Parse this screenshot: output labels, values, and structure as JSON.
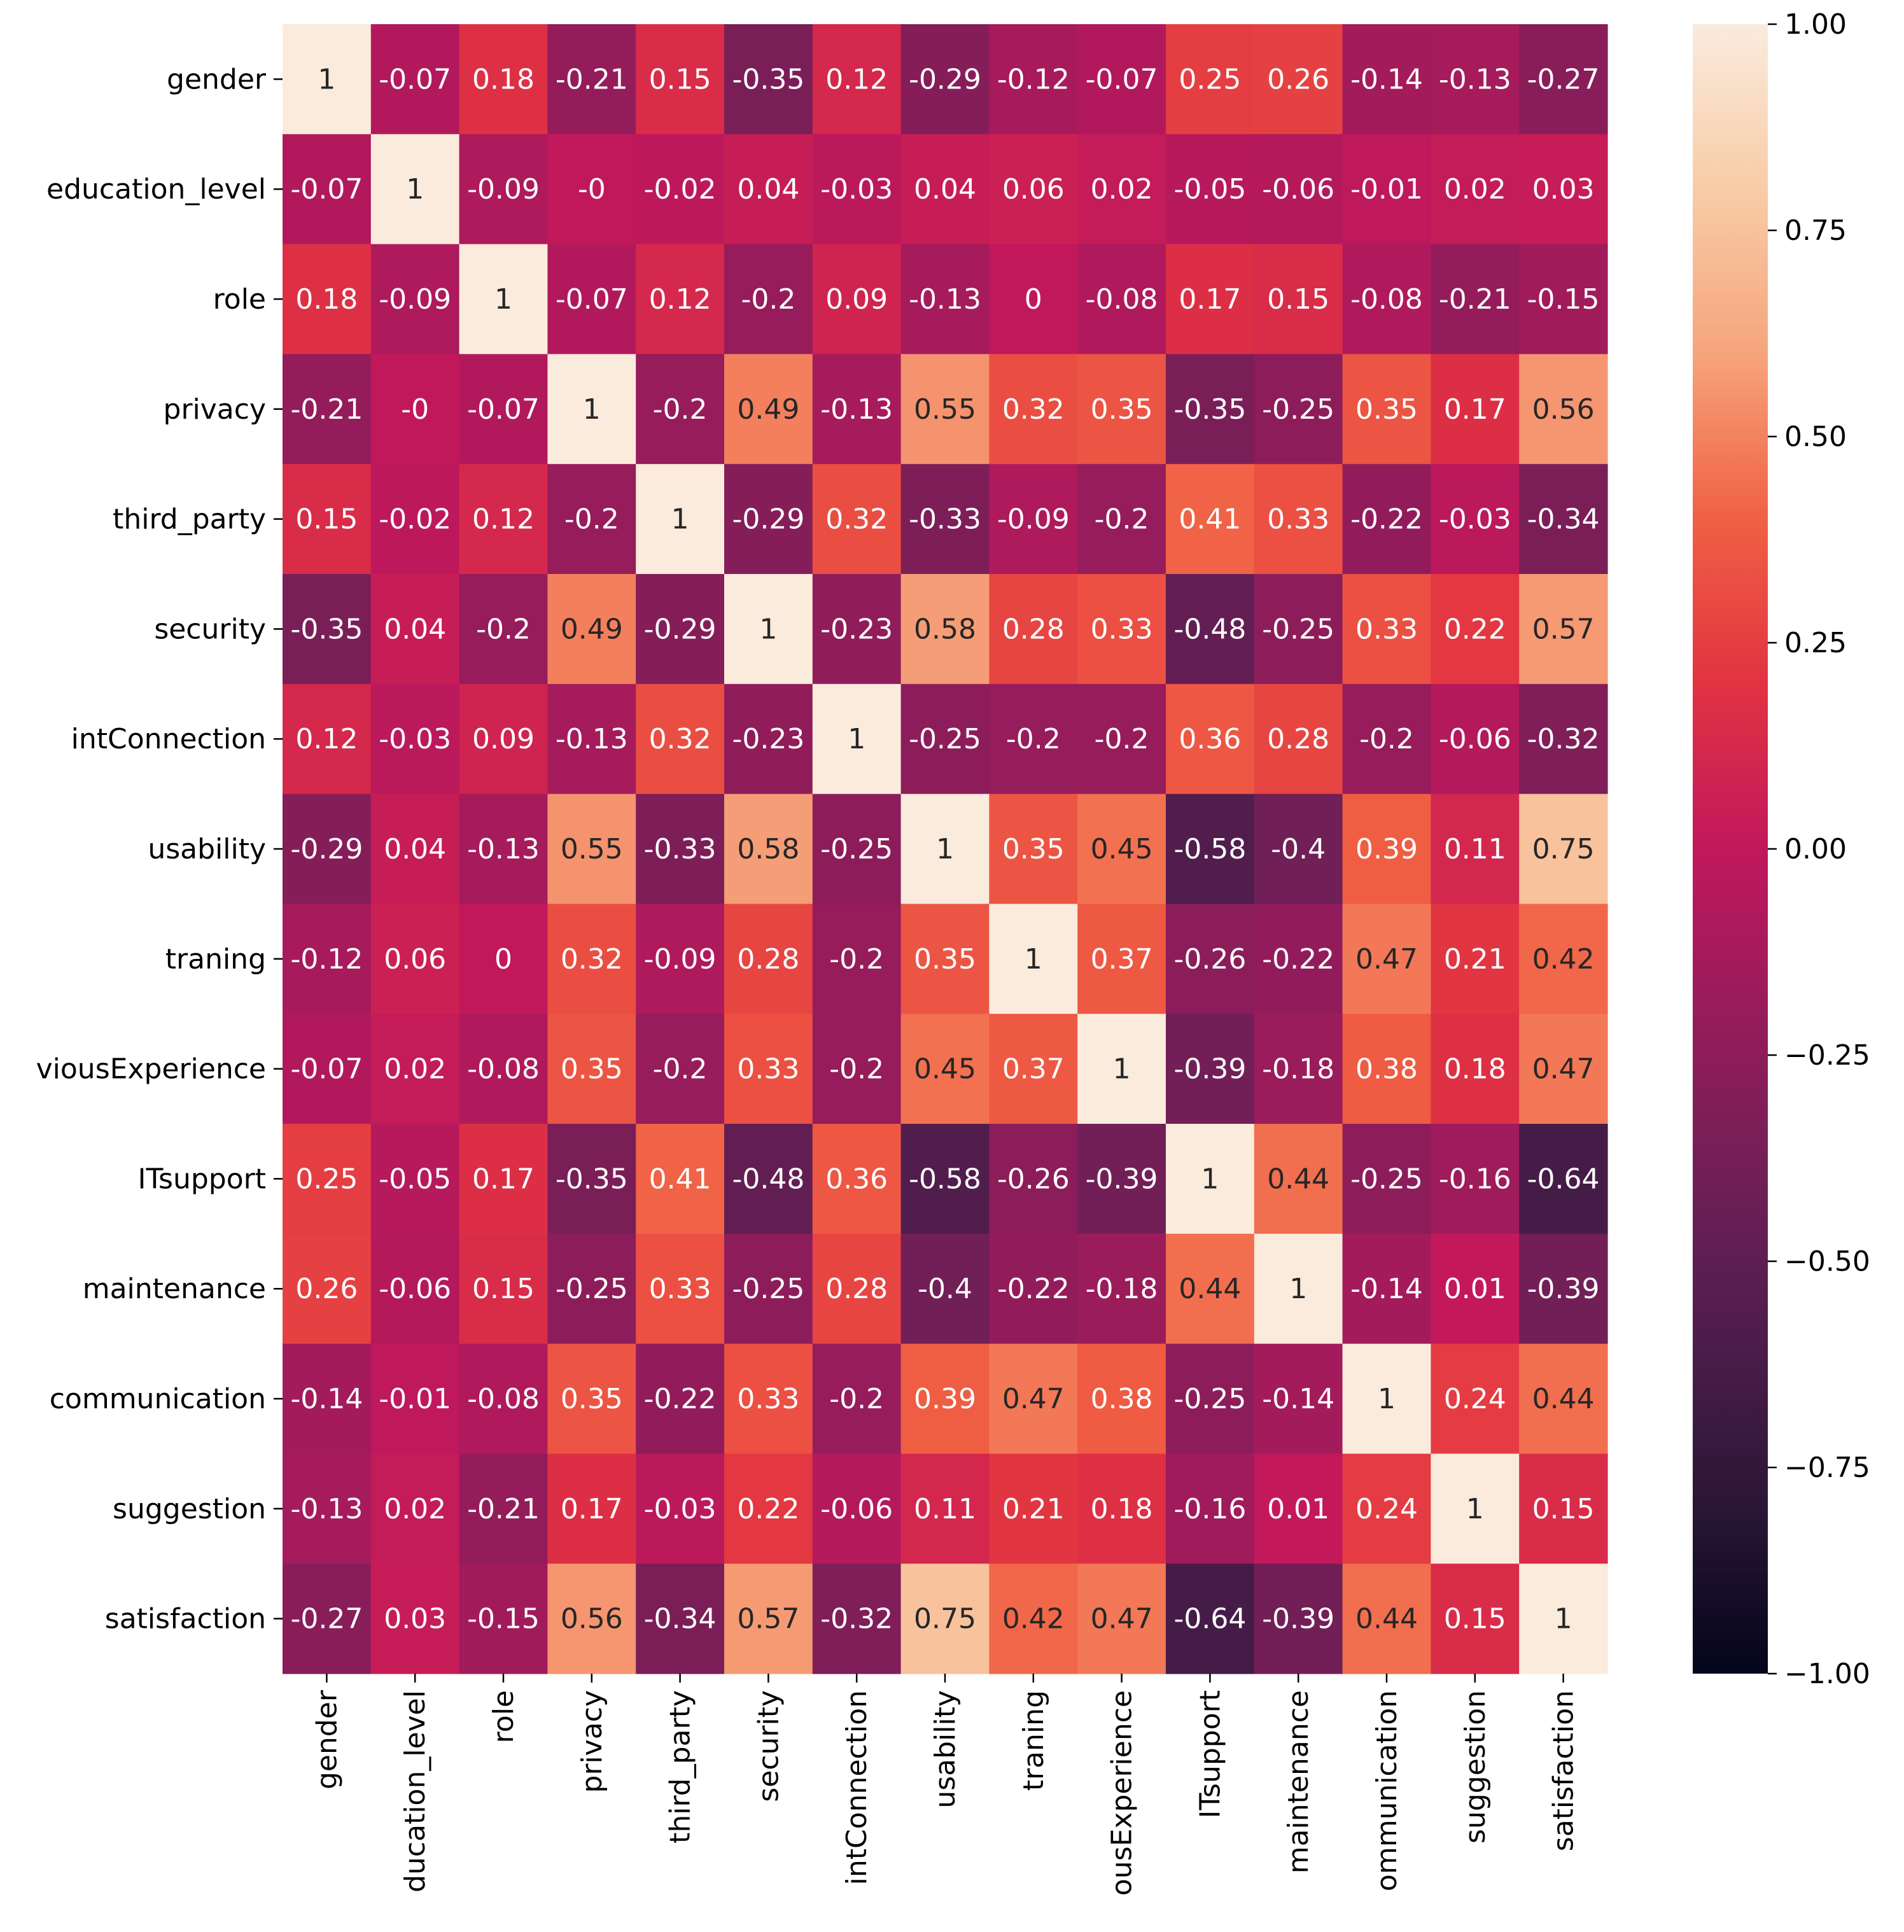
{
  "chart_data": {
    "type": "heatmap",
    "title": "",
    "xlabel": "",
    "ylabel": "",
    "row_labels": [
      "gender",
      "education_level",
      "role",
      "privacy",
      "third_party",
      "security",
      "intConnection",
      "usability",
      "traning",
      "viousExperience",
      "ITsupport",
      "maintenance",
      "communication",
      "suggestion",
      "satisfaction"
    ],
    "col_labels": [
      "gender",
      "ducation_level",
      "role",
      "privacy",
      "third_party",
      "security",
      "intConnection",
      "usability",
      "traning",
      "ousExperience",
      "ITsupport",
      "maintenance",
      "ommunication",
      "suggestion",
      "satisfaction"
    ],
    "values": [
      [
        1,
        -0.07,
        0.18,
        -0.21,
        0.15,
        -0.35,
        0.12,
        -0.29,
        -0.12,
        -0.07,
        0.25,
        0.26,
        -0.14,
        -0.13,
        -0.27
      ],
      [
        -0.07,
        1,
        -0.09,
        -0.0,
        -0.02,
        0.04,
        -0.03,
        0.04,
        0.06,
        0.02,
        -0.05,
        -0.06,
        -0.01,
        0.02,
        0.03
      ],
      [
        0.18,
        -0.09,
        1,
        -0.07,
        0.12,
        -0.2,
        0.09,
        -0.13,
        0,
        -0.08,
        0.17,
        0.15,
        -0.08,
        -0.21,
        -0.15
      ],
      [
        -0.21,
        -0.0,
        -0.07,
        1,
        -0.2,
        0.49,
        -0.13,
        0.55,
        0.32,
        0.35,
        -0.35,
        -0.25,
        0.35,
        0.17,
        0.56
      ],
      [
        0.15,
        -0.02,
        0.12,
        -0.2,
        1,
        -0.29,
        0.32,
        -0.33,
        -0.09,
        -0.2,
        0.41,
        0.33,
        -0.22,
        -0.03,
        -0.34
      ],
      [
        -0.35,
        0.04,
        -0.2,
        0.49,
        -0.29,
        1,
        -0.23,
        0.58,
        0.28,
        0.33,
        -0.48,
        -0.25,
        0.33,
        0.22,
        0.57
      ],
      [
        0.12,
        -0.03,
        0.09,
        -0.13,
        0.32,
        -0.23,
        1,
        -0.25,
        -0.2,
        -0.2,
        0.36,
        0.28,
        -0.2,
        -0.06,
        -0.32
      ],
      [
        -0.29,
        0.04,
        -0.13,
        0.55,
        -0.33,
        0.58,
        -0.25,
        1,
        0.35,
        0.45,
        -0.58,
        -0.4,
        0.39,
        0.11,
        0.75
      ],
      [
        -0.12,
        0.06,
        0,
        0.32,
        -0.09,
        0.28,
        -0.2,
        0.35,
        1,
        0.37,
        -0.26,
        -0.22,
        0.47,
        0.21,
        0.42
      ],
      [
        -0.07,
        0.02,
        -0.08,
        0.35,
        -0.2,
        0.33,
        -0.2,
        0.45,
        0.37,
        1,
        -0.39,
        -0.18,
        0.38,
        0.18,
        0.47
      ],
      [
        0.25,
        -0.05,
        0.17,
        -0.35,
        0.41,
        -0.48,
        0.36,
        -0.58,
        -0.26,
        -0.39,
        1,
        0.44,
        -0.25,
        -0.16,
        -0.64
      ],
      [
        0.26,
        -0.06,
        0.15,
        -0.25,
        0.33,
        -0.25,
        0.28,
        -0.4,
        -0.22,
        -0.18,
        0.44,
        1,
        -0.14,
        0.01,
        -0.39
      ],
      [
        -0.14,
        -0.01,
        -0.08,
        0.35,
        -0.22,
        0.33,
        -0.2,
        0.39,
        0.47,
        0.38,
        -0.25,
        -0.14,
        1,
        0.24,
        0.44
      ],
      [
        -0.13,
        0.02,
        -0.21,
        0.17,
        -0.03,
        0.22,
        -0.06,
        0.11,
        0.21,
        0.18,
        -0.16,
        0.01,
        0.24,
        1,
        0.15
      ],
      [
        -0.27,
        0.03,
        -0.15,
        0.56,
        -0.34,
        0.57,
        -0.32,
        0.75,
        0.42,
        0.47,
        -0.64,
        -0.39,
        0.44,
        0.15,
        1
      ]
    ],
    "cell_text": [
      [
        "1",
        "-0.07",
        "0.18",
        "-0.21",
        "0.15",
        "-0.35",
        "0.12",
        "-0.29",
        "-0.12",
        "-0.07",
        "0.25",
        "0.26",
        "-0.14",
        "-0.13",
        "-0.27"
      ],
      [
        "-0.07",
        "1",
        "-0.09",
        "-0",
        "-0.02",
        "0.04",
        "-0.03",
        "0.04",
        "0.06",
        "0.02",
        "-0.05",
        "-0.06",
        "-0.01",
        "0.02",
        "0.03"
      ],
      [
        "0.18",
        "-0.09",
        "1",
        "-0.07",
        "0.12",
        "-0.2",
        "0.09",
        "-0.13",
        "0",
        "-0.08",
        "0.17",
        "0.15",
        "-0.08",
        "-0.21",
        "-0.15"
      ],
      [
        "-0.21",
        "-0",
        "-0.07",
        "1",
        "-0.2",
        "0.49",
        "-0.13",
        "0.55",
        "0.32",
        "0.35",
        "-0.35",
        "-0.25",
        "0.35",
        "0.17",
        "0.56"
      ],
      [
        "0.15",
        "-0.02",
        "0.12",
        "-0.2",
        "1",
        "-0.29",
        "0.32",
        "-0.33",
        "-0.09",
        "-0.2",
        "0.41",
        "0.33",
        "-0.22",
        "-0.03",
        "-0.34"
      ],
      [
        "-0.35",
        "0.04",
        "-0.2",
        "0.49",
        "-0.29",
        "1",
        "-0.23",
        "0.58",
        "0.28",
        "0.33",
        "-0.48",
        "-0.25",
        "0.33",
        "0.22",
        "0.57"
      ],
      [
        "0.12",
        "-0.03",
        "0.09",
        "-0.13",
        "0.32",
        "-0.23",
        "1",
        "-0.25",
        "-0.2",
        "-0.2",
        "0.36",
        "0.28",
        "-0.2",
        "-0.06",
        "-0.32"
      ],
      [
        "-0.29",
        "0.04",
        "-0.13",
        "0.55",
        "-0.33",
        "0.58",
        "-0.25",
        "1",
        "0.35",
        "0.45",
        "-0.58",
        "-0.4",
        "0.39",
        "0.11",
        "0.75"
      ],
      [
        "-0.12",
        "0.06",
        "0",
        "0.32",
        "-0.09",
        "0.28",
        "-0.2",
        "0.35",
        "1",
        "0.37",
        "-0.26",
        "-0.22",
        "0.47",
        "0.21",
        "0.42"
      ],
      [
        "-0.07",
        "0.02",
        "-0.08",
        "0.35",
        "-0.2",
        "0.33",
        "-0.2",
        "0.45",
        "0.37",
        "1",
        "-0.39",
        "-0.18",
        "0.38",
        "0.18",
        "0.47"
      ],
      [
        "0.25",
        "-0.05",
        "0.17",
        "-0.35",
        "0.41",
        "-0.48",
        "0.36",
        "-0.58",
        "-0.26",
        "-0.39",
        "1",
        "0.44",
        "-0.25",
        "-0.16",
        "-0.64"
      ],
      [
        "0.26",
        "-0.06",
        "0.15",
        "-0.25",
        "0.33",
        "-0.25",
        "0.28",
        "-0.4",
        "-0.22",
        "-0.18",
        "0.44",
        "1",
        "-0.14",
        "0.01",
        "-0.39"
      ],
      [
        "-0.14",
        "-0.01",
        "-0.08",
        "0.35",
        "-0.22",
        "0.33",
        "-0.2",
        "0.39",
        "0.47",
        "0.38",
        "-0.25",
        "-0.14",
        "1",
        "0.24",
        "0.44"
      ],
      [
        "-0.13",
        "0.02",
        "-0.21",
        "0.17",
        "-0.03",
        "0.22",
        "-0.06",
        "0.11",
        "0.21",
        "0.18",
        "-0.16",
        "0.01",
        "0.24",
        "1",
        "0.15"
      ],
      [
        "-0.27",
        "0.03",
        "-0.15",
        "0.56",
        "-0.34",
        "0.57",
        "-0.32",
        "0.75",
        "0.42",
        "0.47",
        "-0.64",
        "-0.39",
        "0.44",
        "0.15",
        "1"
      ]
    ],
    "colorbar": {
      "vmin": -1.0,
      "vmax": 1.0,
      "ticks": [
        1.0,
        0.75,
        0.5,
        0.25,
        0.0,
        -0.25,
        -0.5,
        -0.75,
        -1.0
      ],
      "tick_labels": [
        "1.00",
        "0.75",
        "0.50",
        "0.25",
        "0.00",
        "−0.25",
        "−0.50",
        "−0.75",
        "−1.00"
      ],
      "placement": "right"
    },
    "colormap": {
      "name": "rocket",
      "stops": [
        "#03051a",
        "#2a1636",
        "#4c1d4b",
        "#701f57",
        "#961c5b",
        "#c1185c",
        "#e13342",
        "#f06043",
        "#f6a47c",
        "#f8cca7",
        "#faebdd"
      ]
    },
    "text_colors": {
      "on_dark": "#ffffff",
      "on_light": "#262626"
    }
  }
}
